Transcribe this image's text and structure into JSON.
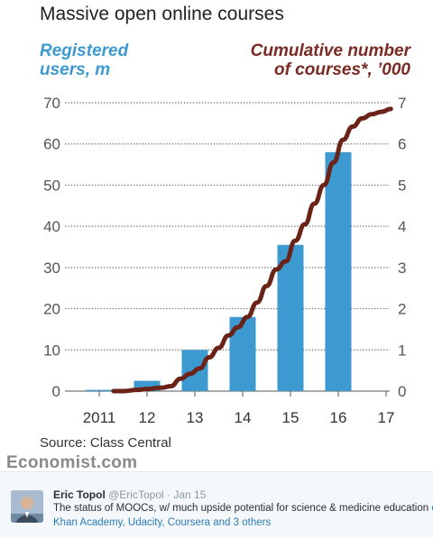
{
  "chart": {
    "title": "Massive open online courses",
    "left_axis_title": [
      "Registered",
      "users, m"
    ],
    "right_axis_title": [
      "Cumulative number",
      "of courses*, ’000"
    ],
    "source": "Source: Class Central",
    "publisher": "Economist.com"
  },
  "chart_data": {
    "type": "bar",
    "title": "Massive open online courses",
    "x_tick_labels": [
      "2011",
      "12",
      "13",
      "14",
      "15",
      "16",
      "17"
    ],
    "xlim": [
      2011,
      2017
    ],
    "bar_series": {
      "name": "Registered users, m",
      "axis": "left",
      "color": "#3d9ad1",
      "x": [
        2011,
        2012,
        2013,
        2014,
        2015,
        2016
      ],
      "values": [
        0.3,
        2.5,
        10,
        18,
        35.5,
        58
      ]
    },
    "line_series": {
      "name": "Cumulative number of courses*, ’000",
      "axis": "right",
      "color": "#6b2217",
      "x": [
        2011.3,
        2011.5,
        2011.8,
        2012.0,
        2012.3,
        2012.5,
        2012.7,
        2012.9,
        2013.1,
        2013.3,
        2013.5,
        2013.7,
        2013.9,
        2014.1,
        2014.3,
        2014.5,
        2014.7,
        2014.9,
        2015.1,
        2015.3,
        2015.5,
        2015.7,
        2015.9,
        2016.1,
        2016.3,
        2016.5,
        2016.7,
        2016.9,
        2017.1
      ],
      "values": [
        0,
        0,
        0.03,
        0.05,
        0.08,
        0.12,
        0.3,
        0.42,
        0.55,
        0.82,
        1.05,
        1.35,
        1.55,
        1.8,
        2.15,
        2.55,
        2.95,
        3.15,
        3.65,
        4.05,
        4.55,
        5.0,
        5.55,
        6.1,
        6.42,
        6.62,
        6.72,
        6.78,
        6.85
      ]
    },
    "left_axis": {
      "label": "Registered users, m",
      "ticks": [
        0,
        10,
        20,
        30,
        40,
        50,
        60,
        70
      ],
      "ylim": [
        0,
        70
      ]
    },
    "right_axis": {
      "label": "Cumulative number of courses*, ’000",
      "ticks": [
        0,
        1,
        2,
        3,
        4,
        5,
        6,
        7
      ],
      "ylim": [
        0,
        7
      ]
    },
    "grid": "dotted horizontal",
    "colors": {
      "bars": "#3d9ad1",
      "line": "#6b2217",
      "left_axis_text": "#3d9ad1",
      "right_axis_text": "#7a2a22"
    }
  },
  "tweet": {
    "name": "Eric Topol",
    "handle": "@EricTopol",
    "separator": "·",
    "date": "Jan 15",
    "text": "The status of MOOCs, w/ much upside potential for science & medicine education",
    "more": "e",
    "mentions": "Khan Academy, Udacity, Coursera and 3 others"
  }
}
